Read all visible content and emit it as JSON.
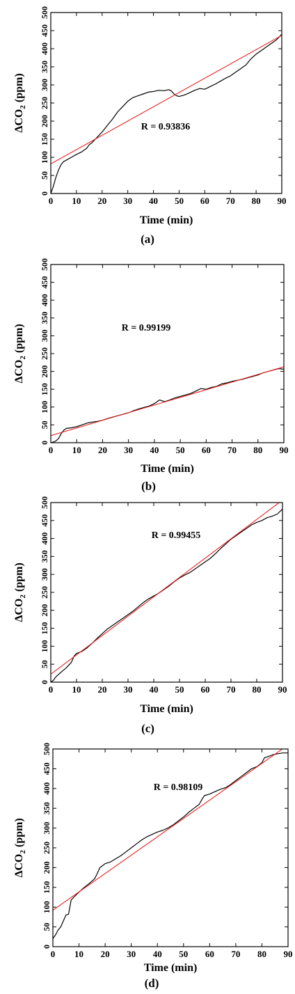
{
  "colors": {
    "data_line": "#000000",
    "fit_line": "#e8211f",
    "axis": "#000000"
  },
  "chart_data": [
    {
      "type": "line",
      "panel_label": "(a)",
      "xlabel": "Time (min)",
      "ylabel_main": "ΔCO",
      "ylabel_sub": "2",
      "ylabel_unit": " (ppm)",
      "annotation": "R = 0.93836",
      "xlim": [
        0,
        90
      ],
      "ylim": [
        0,
        500
      ],
      "xticks": [
        "0",
        "10",
        "20",
        "30",
        "40",
        "50",
        "60",
        "70",
        "80",
        "90"
      ],
      "yticks": [
        "0",
        "50",
        "100",
        "150",
        "200",
        "250",
        "300",
        "350",
        "400",
        "450",
        "500"
      ],
      "series": [
        {
          "role": "measured",
          "x": [
            0,
            1,
            2,
            3,
            4,
            5,
            6,
            8,
            10,
            12,
            14,
            15,
            16,
            18,
            20,
            22,
            24,
            26,
            28,
            30,
            32,
            34,
            36,
            38,
            40,
            42,
            44,
            46,
            47,
            48,
            49,
            50,
            52,
            54,
            56,
            58,
            60,
            62,
            64,
            66,
            68,
            70,
            72,
            74,
            76,
            78,
            80,
            82,
            84,
            86,
            88,
            90
          ],
          "y": [
            0,
            20,
            45,
            65,
            80,
            88,
            92,
            100,
            108,
            115,
            125,
            135,
            140,
            155,
            170,
            188,
            205,
            225,
            240,
            255,
            265,
            270,
            275,
            280,
            282,
            285,
            284,
            287,
            283,
            275,
            270,
            268,
            272,
            278,
            285,
            290,
            288,
            295,
            302,
            310,
            318,
            325,
            335,
            345,
            355,
            372,
            385,
            395,
            405,
            415,
            425,
            440
          ]
        },
        {
          "role": "linear-fit",
          "x": [
            0,
            90
          ],
          "y": [
            82,
            437
          ]
        }
      ]
    },
    {
      "type": "line",
      "panel_label": "(b)",
      "xlabel": "Time (min)",
      "ylabel_main": "ΔCO",
      "ylabel_sub": "2",
      "ylabel_unit": " (ppm)",
      "annotation": "R = 0.99199",
      "xlim": [
        0,
        90
      ],
      "ylim": [
        0,
        500
      ],
      "xticks": [
        "0",
        "10",
        "20",
        "30",
        "40",
        "50",
        "60",
        "70",
        "80",
        "90"
      ],
      "yticks": [
        "0",
        "50",
        "100",
        "150",
        "200",
        "250",
        "300",
        "350",
        "400",
        "450",
        "500"
      ],
      "series": [
        {
          "role": "measured",
          "x": [
            0,
            1,
            2,
            3,
            4,
            5,
            6,
            8,
            10,
            12,
            14,
            16,
            18,
            20,
            22,
            24,
            26,
            28,
            30,
            32,
            34,
            36,
            38,
            40,
            42,
            44,
            46,
            48,
            50,
            52,
            54,
            56,
            58,
            60,
            62,
            64,
            66,
            68,
            70,
            72,
            74,
            76,
            78,
            80,
            82,
            84,
            86,
            88,
            90
          ],
          "y": [
            0,
            2,
            5,
            12,
            25,
            35,
            40,
            42,
            45,
            50,
            55,
            58,
            60,
            63,
            68,
            72,
            76,
            80,
            84,
            90,
            95,
            99,
            103,
            110,
            120,
            115,
            120,
            126,
            130,
            134,
            138,
            145,
            152,
            150,
            155,
            158,
            165,
            168,
            172,
            175,
            178,
            182,
            186,
            190,
            196,
            200,
            204,
            208,
            206
          ]
        },
        {
          "role": "linear-fit",
          "x": [
            0,
            90
          ],
          "y": [
            20,
            213
          ]
        }
      ]
    },
    {
      "type": "line",
      "panel_label": "(c)",
      "xlabel": "Time (min)",
      "ylabel_main": "ΔCO",
      "ylabel_sub": "2",
      "ylabel_unit": " (ppm)",
      "annotation": "R = 0.99455",
      "xlim": [
        0,
        90
      ],
      "ylim": [
        0,
        500
      ],
      "xticks": [
        "0",
        "10",
        "20",
        "30",
        "40",
        "50",
        "60",
        "70",
        "80",
        "90"
      ],
      "yticks": [
        "0",
        "50",
        "100",
        "150",
        "200",
        "250",
        "300",
        "350",
        "400",
        "450",
        "500"
      ],
      "series": [
        {
          "role": "measured",
          "x": [
            0,
            1,
            2,
            4,
            6,
            8,
            9,
            10,
            12,
            14,
            16,
            18,
            20,
            22,
            24,
            26,
            28,
            30,
            32,
            34,
            36,
            38,
            40,
            42,
            44,
            46,
            48,
            50,
            52,
            54,
            56,
            58,
            60,
            62,
            64,
            66,
            68,
            70,
            72,
            74,
            76,
            78,
            80,
            82,
            84,
            86,
            88,
            90
          ],
          "y": [
            0,
            5,
            15,
            28,
            40,
            55,
            72,
            80,
            85,
            95,
            108,
            122,
            135,
            148,
            158,
            168,
            178,
            188,
            198,
            210,
            222,
            232,
            240,
            248,
            258,
            268,
            280,
            290,
            298,
            305,
            315,
            325,
            335,
            345,
            358,
            372,
            385,
            398,
            408,
            418,
            428,
            438,
            445,
            450,
            458,
            462,
            468,
            482
          ]
        },
        {
          "role": "linear-fit",
          "x": [
            0,
            90
          ],
          "y": [
            22,
            507
          ]
        }
      ]
    },
    {
      "type": "line",
      "panel_label": "(d)",
      "xlabel": "Time (min)",
      "ylabel_main": "ΔCO",
      "ylabel_sub": "2",
      "ylabel_unit": " (ppm)",
      "annotation": "R = 0.98109",
      "xlim": [
        0,
        90
      ],
      "ylim": [
        0,
        500
      ],
      "xticks": [
        "0",
        "10",
        "20",
        "30",
        "40",
        "50",
        "60",
        "70",
        "80",
        "90"
      ],
      "yticks": [
        "0",
        "50",
        "100",
        "150",
        "200",
        "250",
        "300",
        "350",
        "400",
        "450",
        "500"
      ],
      "series": [
        {
          "role": "measured",
          "x": [
            0,
            1,
            2,
            3,
            4,
            5,
            6,
            7,
            8,
            10,
            12,
            14,
            16,
            17,
            18,
            19,
            20,
            22,
            24,
            26,
            28,
            30,
            32,
            34,
            36,
            38,
            40,
            42,
            44,
            46,
            48,
            50,
            52,
            54,
            56,
            57,
            58,
            60,
            62,
            64,
            66,
            68,
            70,
            72,
            74,
            76,
            78,
            80,
            81,
            82,
            84,
            86,
            88,
            90
          ],
          "y": [
            20,
            30,
            42,
            50,
            65,
            80,
            82,
            118,
            125,
            138,
            150,
            160,
            172,
            185,
            200,
            205,
            210,
            214,
            222,
            230,
            240,
            250,
            260,
            270,
            278,
            284,
            290,
            294,
            300,
            308,
            318,
            328,
            340,
            350,
            360,
            372,
            382,
            386,
            392,
            398,
            402,
            410,
            420,
            430,
            440,
            450,
            455,
            465,
            478,
            480,
            485,
            488,
            490,
            490
          ]
        },
        {
          "role": "linear-fit",
          "x": [
            0,
            90
          ],
          "y": [
            92,
            510
          ]
        }
      ]
    }
  ]
}
